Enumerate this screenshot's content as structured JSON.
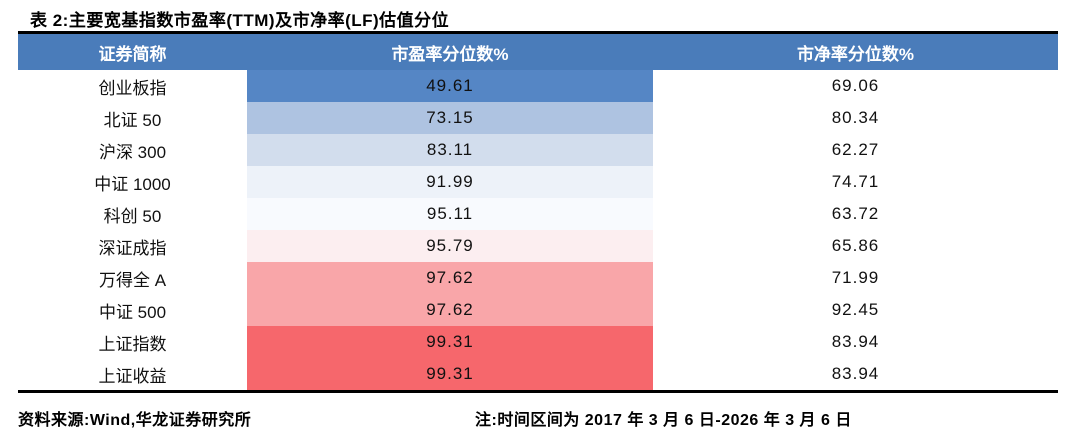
{
  "title": "表 2:主要宽基指数市盈率(TTM)及市净率(LF)估值分位",
  "colors": {
    "header_bg": "#4A7CBA",
    "header_text": "#FFFFFF",
    "table_border": "#000000"
  },
  "table": {
    "columns": [
      "证券简称",
      "市盈率分位数%",
      "市净率分位数%"
    ],
    "rows": [
      {
        "name": "创业板指",
        "pe": "49.61",
        "pb": "69.06",
        "pe_color": "#5586C5"
      },
      {
        "name": "北证 50",
        "pe": "73.15",
        "pb": "80.34",
        "pe_color": "#AEC3E1"
      },
      {
        "name": "沪深 300",
        "pe": "83.11",
        "pb": "62.27",
        "pe_color": "#D2DDED"
      },
      {
        "name": "中证 1000",
        "pe": "91.99",
        "pb": "74.71",
        "pe_color": "#EDF2F9"
      },
      {
        "name": "科创 50",
        "pe": "95.11",
        "pb": "63.72",
        "pe_color": "#F8FAFE"
      },
      {
        "name": "深证成指",
        "pe": "95.79",
        "pb": "65.86",
        "pe_color": "#FCEEF0"
      },
      {
        "name": "万得全 A",
        "pe": "97.62",
        "pb": "71.99",
        "pe_color": "#F9A6A9"
      },
      {
        "name": "中证 500",
        "pe": "97.62",
        "pb": "92.45",
        "pe_color": "#F9A6A9"
      },
      {
        "name": "上证指数",
        "pe": "99.31",
        "pb": "83.94",
        "pe_color": "#F6676C"
      },
      {
        "name": "上证收益",
        "pe": "99.31",
        "pb": "83.94",
        "pe_color": "#F6676C"
      }
    ]
  },
  "footer": {
    "source": "资料来源:Wind,华龙证券研究所",
    "note": "注:时间区间为 2017 年 3 月 6 日-2026 年 3 月 6 日"
  }
}
